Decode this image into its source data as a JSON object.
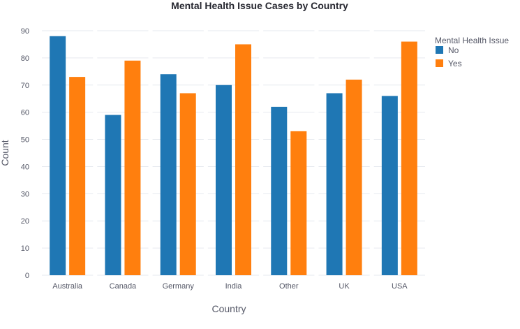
{
  "chart_data": {
    "type": "bar",
    "title": "Mental Health Issue Cases by Country",
    "xlabel": "Country",
    "ylabel": "Count",
    "categories": [
      "Australia",
      "Canada",
      "Germany",
      "India",
      "Other",
      "UK",
      "USA"
    ],
    "series": [
      {
        "name": "No",
        "values": [
          88,
          59,
          74,
          70,
          62,
          67,
          66
        ]
      },
      {
        "name": "Yes",
        "values": [
          73,
          79,
          67,
          85,
          53,
          72,
          86
        ]
      }
    ],
    "ylim": [
      0,
      90
    ],
    "yticks": [
      0,
      10,
      20,
      30,
      40,
      50,
      60,
      70,
      80,
      90
    ],
    "grid": true,
    "legend": {
      "title": "Mental Health Issue",
      "placement": "top-right"
    },
    "colors": {
      "No": "#1f77b4",
      "Yes": "#ff7f0e"
    }
  }
}
